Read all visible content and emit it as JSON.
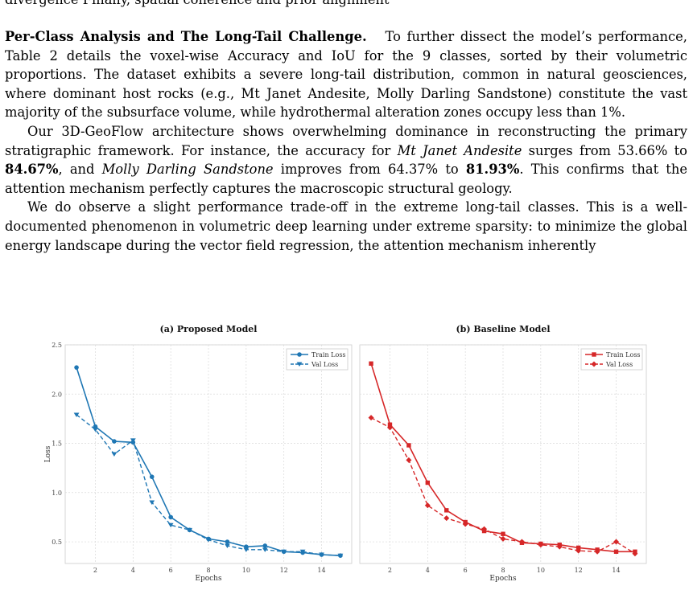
{
  "paragraphs": {
    "cut_line": "divergence Finally, spatial coherence and prior alignment",
    "p1": {
      "heading": "Per-Class Analysis and The Long-Tail Challenge.",
      "body": "To further dissect the model’s performance, Table 2 details the voxel-wise Accuracy and IoU for the 9 classes, sorted by their volumetric proportions. The dataset exhibits a severe long-tail distribution, common in natural geosciences, where dominant host rocks (e.g., Mt Janet Andesite, Molly Darling Sandstone) constitute the vast majority of the subsurface volume, while hydrothermal alteration zones occupy less than 1%."
    },
    "p2": {
      "t1": "Our 3D-GeoFlow architecture shows overwhelming dominance in reconstructing the primary stratigraphic framework. For instance, the accuracy for ",
      "i1": "Mt Janet Andesite",
      "t2": " surges from 53.66% to ",
      "b1": "84.67%",
      "t3": ", and ",
      "i2": "Molly Darling Sandstone",
      "t4": " improves from 64.37% to ",
      "b2": "81.93%",
      "t5": ". This confirms that the attention mechanism perfectly captures the macroscopic structural geology."
    },
    "p3": "We do observe a slight performance trade-off in the extreme long-tail classes. This is a well-documented phenomenon in volumetric deep learning under extreme sparsity: to minimize the global energy landscape during the vector field regression, the attention mechanism inherently"
  },
  "chart_data": [
    {
      "type": "line",
      "title": "(a) Proposed Model",
      "xlabel": "Epochs",
      "ylabel": "Loss",
      "xlim": [
        0.4,
        15.6
      ],
      "ylim": [
        0.28,
        2.5
      ],
      "xticks": [
        2,
        4,
        6,
        8,
        10,
        12,
        14
      ],
      "yticks": [
        0.5,
        1.0,
        1.5,
        2.0,
        2.5
      ],
      "ytick_labels": [
        "0.5",
        "1.0",
        "1.5",
        "2.0",
        "2.5"
      ],
      "grid": true,
      "legend": "top-right",
      "color": "#1f77b4",
      "x": [
        1,
        2,
        3,
        4,
        5,
        6,
        7,
        8,
        9,
        10,
        11,
        12,
        13,
        14,
        15
      ],
      "series": [
        {
          "name": "Train Loss",
          "style": "solid",
          "marker": "circle",
          "values": [
            2.27,
            1.67,
            1.52,
            1.51,
            1.16,
            0.75,
            0.62,
            0.53,
            0.5,
            0.45,
            0.46,
            0.4,
            0.39,
            0.37,
            0.36
          ]
        },
        {
          "name": "Val Loss",
          "style": "dashed",
          "marker": "triangle-down",
          "values": [
            1.79,
            1.64,
            1.39,
            1.53,
            0.9,
            0.67,
            0.62,
            0.52,
            0.46,
            0.42,
            0.42,
            0.4,
            0.4,
            0.37,
            0.36
          ]
        }
      ]
    },
    {
      "type": "line",
      "title": "(b) Baseline Model",
      "xlabel": "Epochs",
      "ylabel": "",
      "xlim": [
        0.4,
        15.6
      ],
      "ylim": [
        0.28,
        2.5
      ],
      "xticks": [
        2,
        4,
        6,
        8,
        10,
        12,
        14
      ],
      "yticks": [
        0.5,
        1.0,
        1.5,
        2.0,
        2.5
      ],
      "ytick_labels": [],
      "grid": true,
      "legend": "top-right",
      "color": "#d62728",
      "x": [
        1,
        2,
        3,
        4,
        5,
        6,
        7,
        8,
        9,
        10,
        11,
        12,
        13,
        14,
        15
      ],
      "series": [
        {
          "name": "Train Loss",
          "style": "solid",
          "marker": "square",
          "values": [
            2.31,
            1.69,
            1.48,
            1.1,
            0.82,
            0.7,
            0.61,
            0.58,
            0.49,
            0.48,
            0.47,
            0.44,
            0.42,
            0.4,
            0.4
          ]
        },
        {
          "name": "Val Loss",
          "style": "dashed",
          "marker": "diamond",
          "values": [
            1.76,
            1.66,
            1.33,
            0.87,
            0.74,
            0.68,
            0.63,
            0.53,
            0.5,
            0.47,
            0.45,
            0.41,
            0.4,
            0.5,
            0.38
          ]
        }
      ]
    }
  ]
}
